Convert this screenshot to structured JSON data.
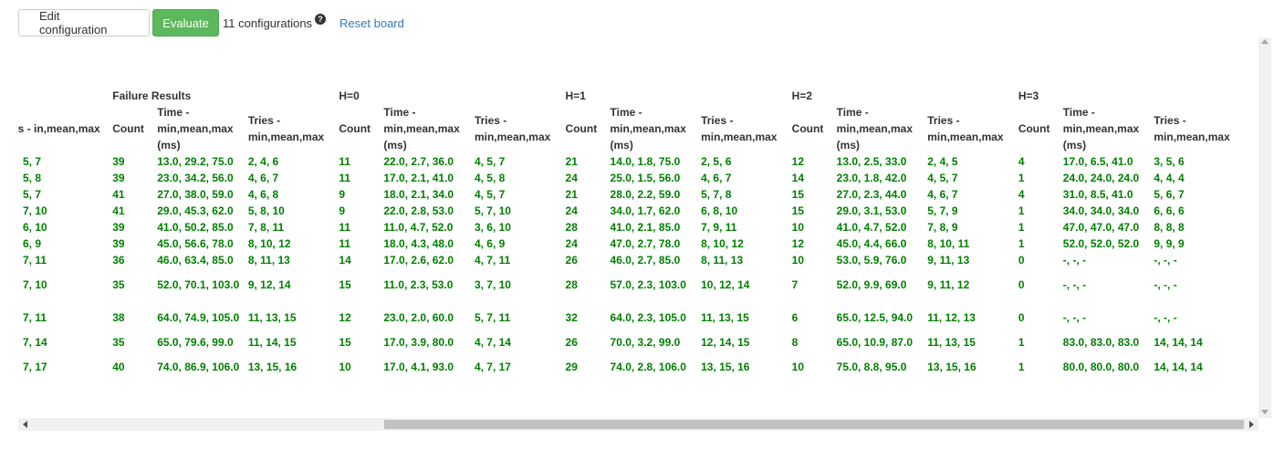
{
  "toolbar": {
    "edit_label": "Edit configuration",
    "evaluate_label": "Evaluate",
    "config_count": "11 configurations",
    "help_glyph": "?",
    "reset_label": "Reset board"
  },
  "table": {
    "groups": [
      "Failure Results",
      "H=0",
      "H=1",
      "H=2",
      "H=3"
    ],
    "headers": {
      "tries_partial": "ries - in,mean,max",
      "count": "Count",
      "time": "Time - min,mean,max (ms)",
      "tries": "Tries - min,mean,max"
    },
    "rows": [
      [
        "5, 7",
        "39",
        "13.0, 29.2, 75.0",
        "2, 4, 6",
        "11",
        "22.0, 2.7, 36.0",
        "4, 5, 7",
        "21",
        "14.0, 1.8, 75.0",
        "2, 5, 6",
        "12",
        "13.0, 2.5, 33.0",
        "2, 4, 5",
        "4",
        "17.0, 6.5, 41.0",
        "3, 5, 6"
      ],
      [
        "5, 8",
        "39",
        "23.0, 34.2, 56.0",
        "4, 6, 7",
        "11",
        "17.0, 2.1, 41.0",
        "4, 5, 8",
        "24",
        "25.0, 1.5, 56.0",
        "4, 6, 7",
        "14",
        "23.0, 1.8, 42.0",
        "4, 5, 7",
        "1",
        "24.0, 24.0, 24.0",
        "4, 4, 4"
      ],
      [
        "5, 7",
        "41",
        "27.0, 38.0, 59.0",
        "4, 6, 8",
        "9",
        "18.0, 2.1, 34.0",
        "4, 5, 7",
        "21",
        "28.0, 2.2, 59.0",
        "5, 7, 8",
        "15",
        "27.0, 2.3, 44.0",
        "4, 6, 7",
        "4",
        "31.0, 8.5, 41.0",
        "5, 6, 7"
      ],
      [
        "7, 10",
        "41",
        "29.0, 45.3, 62.0",
        "5, 8, 10",
        "9",
        "22.0, 2.8, 53.0",
        "5, 7, 10",
        "24",
        "34.0, 1.7, 62.0",
        "6, 8, 10",
        "15",
        "29.0, 3.1, 53.0",
        "5, 7, 9",
        "1",
        "34.0, 34.0, 34.0",
        "6, 6, 6"
      ],
      [
        "6, 10",
        "39",
        "41.0, 50.2, 85.0",
        "7, 8, 11",
        "11",
        "11.0, 4.7, 52.0",
        "3, 6, 10",
        "28",
        "41.0, 2.1, 85.0",
        "7, 9, 11",
        "10",
        "41.0, 4.7, 52.0",
        "7, 8, 9",
        "1",
        "47.0, 47.0, 47.0",
        "8, 8, 8"
      ],
      [
        "6, 9",
        "39",
        "45.0, 56.6, 78.0",
        "8, 10, 12",
        "11",
        "18.0, 4.3, 48.0",
        "4, 6, 9",
        "24",
        "47.0, 2.7, 78.0",
        "8, 10, 12",
        "12",
        "45.0, 4.4, 66.0",
        "8, 10, 11",
        "1",
        "52.0, 52.0, 52.0",
        "9, 9, 9"
      ],
      [
        "7, 11",
        "36",
        "46.0, 63.4, 85.0",
        "8, 11, 13",
        "14",
        "17.0, 2.6, 62.0",
        "4, 7, 11",
        "26",
        "46.0, 2.7, 85.0",
        "8, 11, 13",
        "10",
        "53.0, 5.9, 76.0",
        "9, 11, 13",
        "0",
        "-, -, -",
        "-, -, -"
      ],
      [
        "7, 10",
        "35",
        "52.0, 70.1, 103.0",
        "9, 12, 14",
        "15",
        "11.0, 2.3, 53.0",
        "3, 7, 10",
        "28",
        "57.0, 2.3, 103.0",
        "10, 12, 14",
        "7",
        "52.0, 9.9, 69.0",
        "9, 11, 12",
        "0",
        "-, -, -",
        "-, -, -"
      ],
      [
        "7, 11",
        "38",
        "64.0, 74.9, 105.0",
        "11, 13, 15",
        "12",
        "23.0, 2.0, 60.0",
        "5, 7, 11",
        "32",
        "64.0, 2.3, 105.0",
        "11, 13, 15",
        "6",
        "65.0, 12.5, 94.0",
        "11, 12, 13",
        "0",
        "-, -, -",
        "-, -, -"
      ],
      [
        "7, 14",
        "35",
        "65.0, 79.6, 99.0",
        "11, 14, 15",
        "15",
        "17.0, 3.9, 80.0",
        "4, 7, 14",
        "26",
        "70.0, 3.2, 99.0",
        "12, 14, 15",
        "8",
        "65.0, 10.9, 87.0",
        "11, 13, 15",
        "1",
        "83.0, 83.0, 83.0",
        "14, 14, 14"
      ],
      [
        "7, 17",
        "40",
        "74.0, 86.9, 106.0",
        "13, 15, 16",
        "10",
        "17.0, 4.1, 93.0",
        "4, 7, 17",
        "29",
        "74.0, 2.8, 106.0",
        "13, 15, 16",
        "10",
        "75.0, 8.8, 95.0",
        "13, 15, 16",
        "1",
        "80.0, 80.0, 80.0",
        "14, 14, 14"
      ]
    ],
    "tall_rows": [
      7,
      8,
      10
    ]
  },
  "colors": {
    "success": "#5cb85c",
    "link": "#337ab7",
    "data_text": "#008000"
  }
}
